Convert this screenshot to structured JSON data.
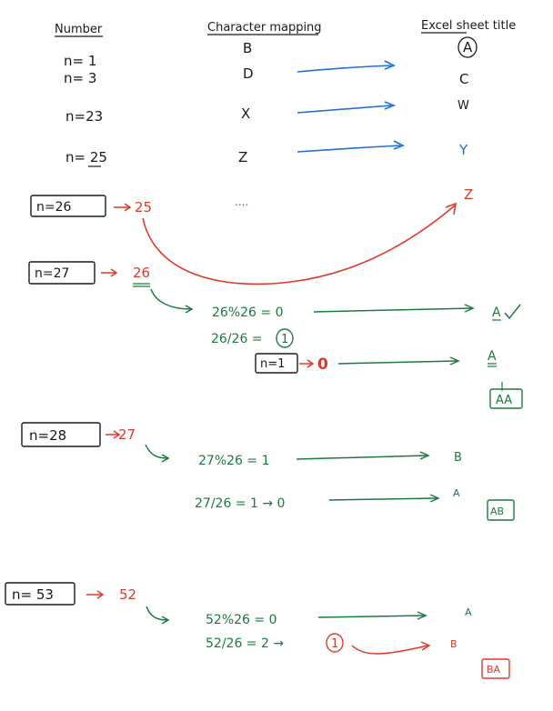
{
  "headers": {
    "number": "Number",
    "mapping": "Character mapping",
    "excel": "Excel sheet title"
  },
  "rows": {
    "n1": "n= 1",
    "n3": "n= 3",
    "n23": "n=23",
    "n25": "n= 25"
  },
  "mapping": {
    "b": "B",
    "d": "D",
    "x": "X",
    "z": "Z",
    "dots": "....",
    "circled_a": "A",
    "c": "C",
    "w": "W",
    "y": "Y",
    "z_red": "Z"
  },
  "n26": {
    "label": "n=26",
    "value": "25"
  },
  "n27": {
    "label": "n=27",
    "value": "26",
    "mod": "26%26 = 0",
    "div": "26/26 =",
    "div_circled": "1",
    "n1_box": "n=1",
    "zero": "0",
    "res_a1": "A",
    "res_a2": "A",
    "box": "AA"
  },
  "n28": {
    "label": "n=28",
    "value": "27",
    "mod": "27%26 = 1",
    "div": "27/26 = 1 → 0",
    "res_b": "B",
    "res_a": "A",
    "box": "AB"
  },
  "n53": {
    "label": "n= 53",
    "value": "52",
    "mod": "52%26 = 0",
    "div": "52/26 = 2 →",
    "div_circled": "1",
    "res_a": "A",
    "res_b": "B",
    "box": "BA"
  },
  "colors": {
    "ink": "#1a1a1a",
    "blue": "#1f6fd6",
    "red": "#e0392b",
    "green": "#1b7a3e"
  }
}
